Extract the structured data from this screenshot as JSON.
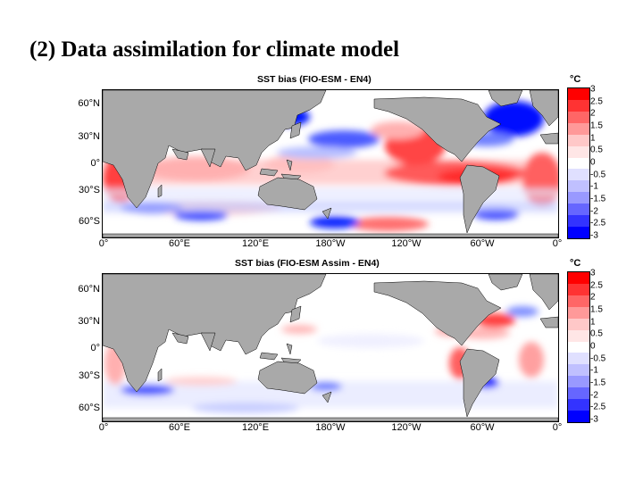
{
  "slide": {
    "title": "(2) Data assimilation for climate model"
  },
  "colorbar": {
    "unit": "°C",
    "labels": [
      "3",
      "2.5",
      "2",
      "1.5",
      "1",
      "0.5",
      "0",
      "-0.5",
      "-1",
      "-1.5",
      "-2",
      "-2.5",
      "-3"
    ],
    "colors": [
      "#ff0000",
      "#ff3333",
      "#ff6666",
      "#ff9999",
      "#ffc8c8",
      "#ffe6e6",
      "#ffffff",
      "#e0e0ff",
      "#c0c0ff",
      "#9999ff",
      "#6666ff",
      "#3333ff",
      "#0000ff"
    ]
  },
  "map_top": {
    "title": "SST bias (FIO-ESM - EN4)",
    "lat_labels": [
      "60°N",
      "30°N",
      "0°",
      "30°S",
      "60°S"
    ],
    "lon_labels": [
      "0°",
      "60°E",
      "120°E",
      "180°W",
      "120°W",
      "60°W",
      "0°"
    ]
  },
  "map_bottom": {
    "title": "SST bias (FIO-ESM Assim - EN4)",
    "lat_labels": [
      "60°N",
      "30°N",
      "0°",
      "30°S",
      "60°S"
    ],
    "lon_labels": [
      "0°",
      "60°E",
      "120°E",
      "180°W",
      "120°W",
      "60°W",
      "0°"
    ]
  },
  "colors": {
    "land": "#a9a9a9",
    "ocean": "#ffffff",
    "warm": "#ff2020",
    "cold": "#1020ff"
  }
}
